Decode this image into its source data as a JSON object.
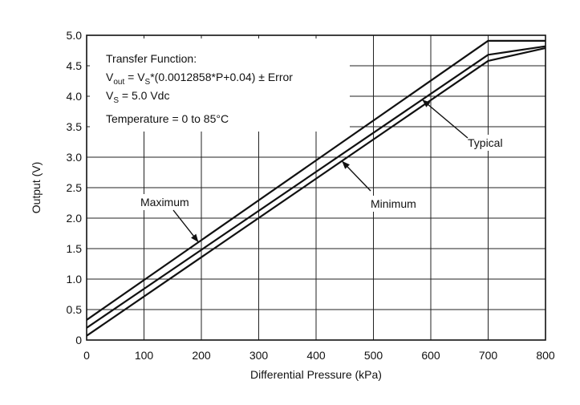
{
  "chart_data": {
    "type": "line",
    "xlabel": "Differential Pressure (kPa)",
    "ylabel": "Output (V)",
    "xlim": [
      0,
      800
    ],
    "ylim": [
      0,
      5.0
    ],
    "x_ticks": [
      "0",
      "100",
      "200",
      "300",
      "400",
      "500",
      "600",
      "700",
      "800"
    ],
    "y_ticks": [
      "0",
      "0.5",
      "1.0",
      "1.5",
      "2.0",
      "2.5",
      "3.0",
      "3.5",
      "4.0",
      "4.5",
      "5.0"
    ],
    "grid": true,
    "series": [
      {
        "name": "Maximum",
        "x": [
          0,
          700,
          800
        ],
        "y": [
          0.33,
          4.91,
          4.91
        ]
      },
      {
        "name": "Typical",
        "x": [
          0,
          700,
          800
        ],
        "y": [
          0.2,
          4.68,
          4.82
        ]
      },
      {
        "name": "Minimum",
        "x": [
          0,
          700,
          800
        ],
        "y": [
          0.07,
          4.58,
          4.79
        ]
      }
    ],
    "annotation_box": {
      "line1": "Transfer Function:",
      "line2_base": "V",
      "line2_sub": "out",
      "line2_mid1": " = V",
      "line2_sub2": "S",
      "line2_rest": "*(0.0012858*P+0.04) ± Error",
      "line3_base": "V",
      "line3_sub": "S",
      "line3_rest": " = 5.0 Vdc",
      "line4": "Temperature = 0 to 85°C"
    }
  }
}
